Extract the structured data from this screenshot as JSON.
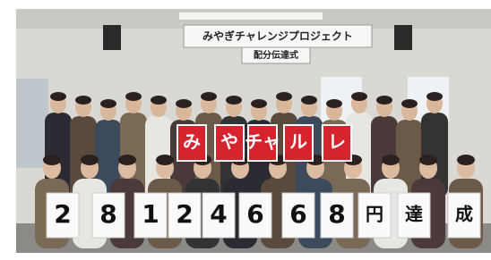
{
  "banner": {
    "title": "みやぎチャレンジプロジェクト",
    "subtitle": "配分伝達式"
  },
  "red_cards": [
    "み",
    "や",
    "チャ",
    "ル",
    "レ"
  ],
  "white_cards": [
    "2",
    "8",
    "1",
    "2",
    "4",
    "6",
    "6",
    "8",
    "円",
    "達",
    "成"
  ]
}
